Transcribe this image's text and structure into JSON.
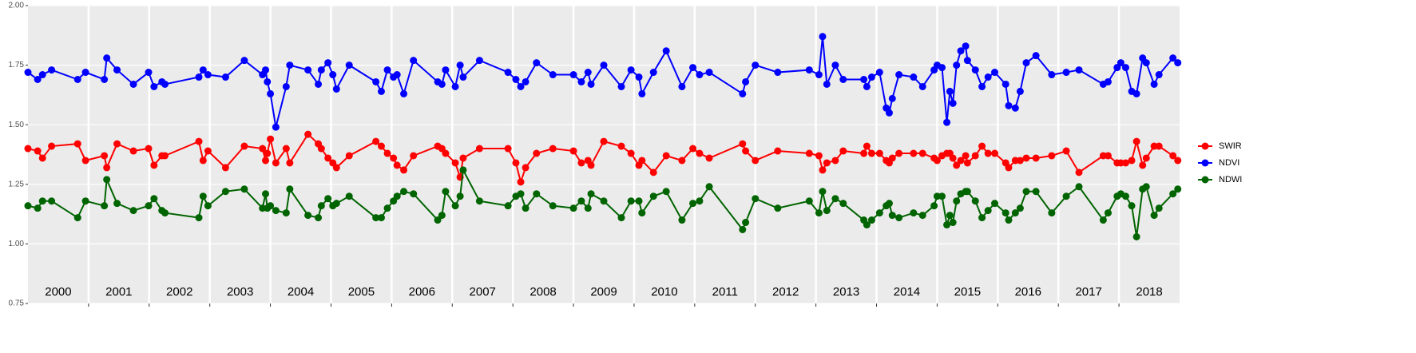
{
  "chart_data": {
    "type": "line",
    "x": [
      2000.0,
      2000.16,
      2000.24,
      2000.39,
      2000.82,
      2000.95,
      2001.26,
      2001.3,
      2001.47,
      2001.74,
      2001.99,
      2002.08,
      2002.21,
      2002.26,
      2002.82,
      2002.89,
      2002.97,
      2003.26,
      2003.57,
      2003.87,
      2003.92,
      2003.95,
      2004.0,
      2004.09,
      2004.26,
      2004.32,
      2004.62,
      2004.79,
      2004.84,
      2004.95,
      2005.03,
      2005.09,
      2005.3,
      2005.74,
      2005.83,
      2005.93,
      2006.03,
      2006.09,
      2006.2,
      2006.36,
      2006.76,
      2006.83,
      2006.89,
      2007.05,
      2007.13,
      2007.18,
      2007.45,
      2007.92,
      2008.05,
      2008.13,
      2008.21,
      2008.39,
      2008.66,
      2009.0,
      2009.13,
      2009.24,
      2009.29,
      2009.5,
      2009.79,
      2009.95,
      2010.08,
      2010.13,
      2010.32,
      2010.53,
      2010.79,
      2010.97,
      2011.08,
      2011.24,
      2011.79,
      2011.84,
      2012.0,
      2012.37,
      2012.89,
      2013.05,
      2013.11,
      2013.18,
      2013.32,
      2013.45,
      2013.79,
      2013.84,
      2013.92,
      2014.05,
      2014.16,
      2014.21,
      2014.26,
      2014.37,
      2014.61,
      2014.76,
      2014.95,
      2015.0,
      2015.08,
      2015.16,
      2015.21,
      2015.26,
      2015.32,
      2015.39,
      2015.47,
      2015.5,
      2015.63,
      2015.74,
      2015.84,
      2015.95,
      2016.13,
      2016.18,
      2016.29,
      2016.37,
      2016.47,
      2016.63,
      2016.89,
      2017.13,
      2017.34,
      2017.74,
      2017.82,
      2017.97,
      2018.03,
      2018.11,
      2018.21,
      2018.29,
      2018.39,
      2018.45,
      2018.58,
      2018.66,
      2018.89,
      2018.97
    ],
    "series": [
      {
        "name": "SWIR",
        "color": "#ff0000",
        "values": [
          1.4,
          1.39,
          1.36,
          1.41,
          1.42,
          1.35,
          1.37,
          1.32,
          1.42,
          1.39,
          1.4,
          1.33,
          1.37,
          1.37,
          1.43,
          1.35,
          1.39,
          1.32,
          1.41,
          1.4,
          1.35,
          1.38,
          1.44,
          1.34,
          1.4,
          1.34,
          1.46,
          1.42,
          1.4,
          1.36,
          1.34,
          1.32,
          1.37,
          1.43,
          1.41,
          1.38,
          1.36,
          1.33,
          1.31,
          1.37,
          1.41,
          1.4,
          1.38,
          1.34,
          1.28,
          1.36,
          1.4,
          1.4,
          1.34,
          1.26,
          1.32,
          1.38,
          1.4,
          1.39,
          1.34,
          1.35,
          1.33,
          1.43,
          1.41,
          1.38,
          1.33,
          1.35,
          1.3,
          1.37,
          1.35,
          1.4,
          1.38,
          1.36,
          1.42,
          1.39,
          1.35,
          1.39,
          1.38,
          1.37,
          1.31,
          1.34,
          1.35,
          1.39,
          1.38,
          1.41,
          1.38,
          1.38,
          1.35,
          1.34,
          1.36,
          1.38,
          1.38,
          1.38,
          1.36,
          1.35,
          1.37,
          1.38,
          1.38,
          1.36,
          1.33,
          1.35,
          1.37,
          1.34,
          1.37,
          1.41,
          1.38,
          1.38,
          1.34,
          1.32,
          1.35,
          1.35,
          1.36,
          1.36,
          1.37,
          1.39,
          1.3,
          1.37,
          1.37,
          1.34,
          1.34,
          1.34,
          1.35,
          1.43,
          1.33,
          1.36,
          1.41,
          1.41,
          1.37,
          1.35
        ]
      },
      {
        "name": "NDVI",
        "color": "#0000ff",
        "values": [
          1.72,
          1.69,
          1.71,
          1.73,
          1.69,
          1.72,
          1.69,
          1.78,
          1.73,
          1.67,
          1.72,
          1.66,
          1.68,
          1.67,
          1.7,
          1.73,
          1.71,
          1.7,
          1.77,
          1.71,
          1.73,
          1.68,
          1.63,
          1.49,
          1.66,
          1.75,
          1.73,
          1.67,
          1.73,
          1.76,
          1.71,
          1.65,
          1.75,
          1.68,
          1.64,
          1.73,
          1.7,
          1.71,
          1.63,
          1.77,
          1.68,
          1.67,
          1.73,
          1.66,
          1.75,
          1.7,
          1.77,
          1.72,
          1.69,
          1.66,
          1.68,
          1.76,
          1.71,
          1.71,
          1.68,
          1.72,
          1.67,
          1.75,
          1.66,
          1.73,
          1.7,
          1.63,
          1.72,
          1.81,
          1.66,
          1.74,
          1.71,
          1.72,
          1.63,
          1.68,
          1.75,
          1.72,
          1.73,
          1.71,
          1.87,
          1.67,
          1.75,
          1.69,
          1.69,
          1.66,
          1.7,
          1.72,
          1.57,
          1.55,
          1.61,
          1.71,
          1.7,
          1.66,
          1.73,
          1.75,
          1.74,
          1.51,
          1.64,
          1.59,
          1.75,
          1.81,
          1.83,
          1.77,
          1.73,
          1.66,
          1.7,
          1.72,
          1.67,
          1.58,
          1.57,
          1.64,
          1.76,
          1.79,
          1.71,
          1.72,
          1.73,
          1.67,
          1.68,
          1.74,
          1.76,
          1.74,
          1.64,
          1.63,
          1.78,
          1.76,
          1.67,
          1.71,
          1.78,
          1.76
        ]
      },
      {
        "name": "NDWI",
        "color": "#006400",
        "values": [
          1.16,
          1.15,
          1.18,
          1.18,
          1.11,
          1.18,
          1.16,
          1.27,
          1.17,
          1.14,
          1.16,
          1.19,
          1.14,
          1.13,
          1.11,
          1.2,
          1.16,
          1.22,
          1.23,
          1.15,
          1.21,
          1.15,
          1.16,
          1.14,
          1.13,
          1.23,
          1.12,
          1.11,
          1.16,
          1.19,
          1.16,
          1.17,
          1.2,
          1.11,
          1.11,
          1.15,
          1.18,
          1.2,
          1.22,
          1.21,
          1.1,
          1.12,
          1.22,
          1.16,
          1.2,
          1.31,
          1.18,
          1.16,
          1.2,
          1.21,
          1.15,
          1.21,
          1.16,
          1.15,
          1.18,
          1.15,
          1.21,
          1.18,
          1.11,
          1.18,
          1.18,
          1.13,
          1.2,
          1.22,
          1.1,
          1.17,
          1.18,
          1.24,
          1.06,
          1.09,
          1.19,
          1.15,
          1.18,
          1.13,
          1.22,
          1.14,
          1.19,
          1.17,
          1.1,
          1.08,
          1.1,
          1.13,
          1.16,
          1.17,
          1.12,
          1.11,
          1.13,
          1.12,
          1.16,
          1.2,
          1.2,
          1.08,
          1.12,
          1.09,
          1.18,
          1.21,
          1.22,
          1.22,
          1.18,
          1.11,
          1.14,
          1.17,
          1.13,
          1.1,
          1.13,
          1.15,
          1.22,
          1.22,
          1.13,
          1.2,
          1.24,
          1.1,
          1.13,
          1.2,
          1.21,
          1.2,
          1.16,
          1.03,
          1.23,
          1.24,
          1.12,
          1.15,
          1.21,
          1.23
        ]
      }
    ],
    "xlim": [
      2000,
      2019
    ],
    "xticks": [
      2001,
      2002,
      2003,
      2004,
      2005,
      2006,
      2007,
      2008,
      2009,
      2010,
      2011,
      2012,
      2013,
      2014,
      2015,
      2016,
      2017,
      2018
    ],
    "year_labels": [
      "2000",
      "2001",
      "2002",
      "2003",
      "2004",
      "2005",
      "2006",
      "2007",
      "2008",
      "2009",
      "2010",
      "2011",
      "2012",
      "2013",
      "2014",
      "2015",
      "2016",
      "2017",
      "2018"
    ],
    "ylim": [
      0.75,
      2.0
    ],
    "yticks": [
      0.75,
      {
        "value": 1.0,
        "label": "1.00"
      },
      1.25,
      {
        "value": 1.5,
        "label": "1.50"
      },
      1.75,
      {
        "value": 2.0,
        "label": "2.00"
      }
    ],
    "grid": true,
    "legend": "right"
  }
}
